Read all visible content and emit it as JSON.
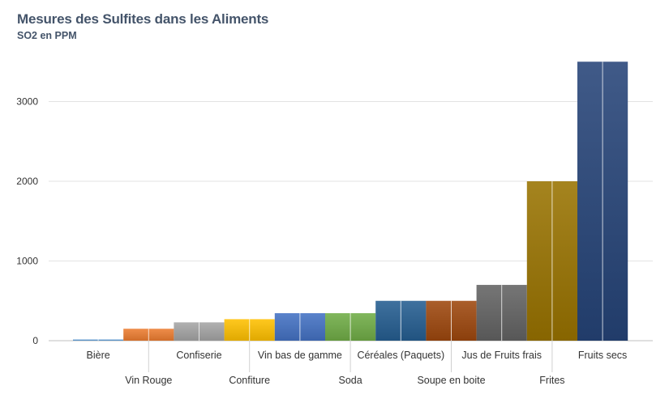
{
  "chart_data": {
    "type": "bar",
    "title": "Mesures des Sulfites dans les Aliments",
    "subtitle": "SO2 en PPM",
    "xlabel": "",
    "ylabel": "",
    "ylim": [
      0,
      3500
    ],
    "yticks": [
      0,
      1000,
      2000,
      3000
    ],
    "grid": true,
    "categories": [
      "Bière",
      "Vin Rouge",
      "Confiserie",
      "Confiture",
      "Vin bas de gamme",
      "Soda",
      "Céréales (Paquets)",
      "Soupe en boite",
      "Jus de Fruits frais",
      "Frites",
      "Fruits secs"
    ],
    "values": [
      15,
      150,
      230,
      270,
      345,
      345,
      500,
      500,
      700,
      2000,
      3500
    ],
    "colors": [
      "#5b9bd5",
      "#ed7d31",
      "#a5a5a5",
      "#ffc000",
      "#4472c4",
      "#70ad47",
      "#255e91",
      "#9e480e",
      "#636363",
      "#997300",
      "#264478"
    ]
  }
}
